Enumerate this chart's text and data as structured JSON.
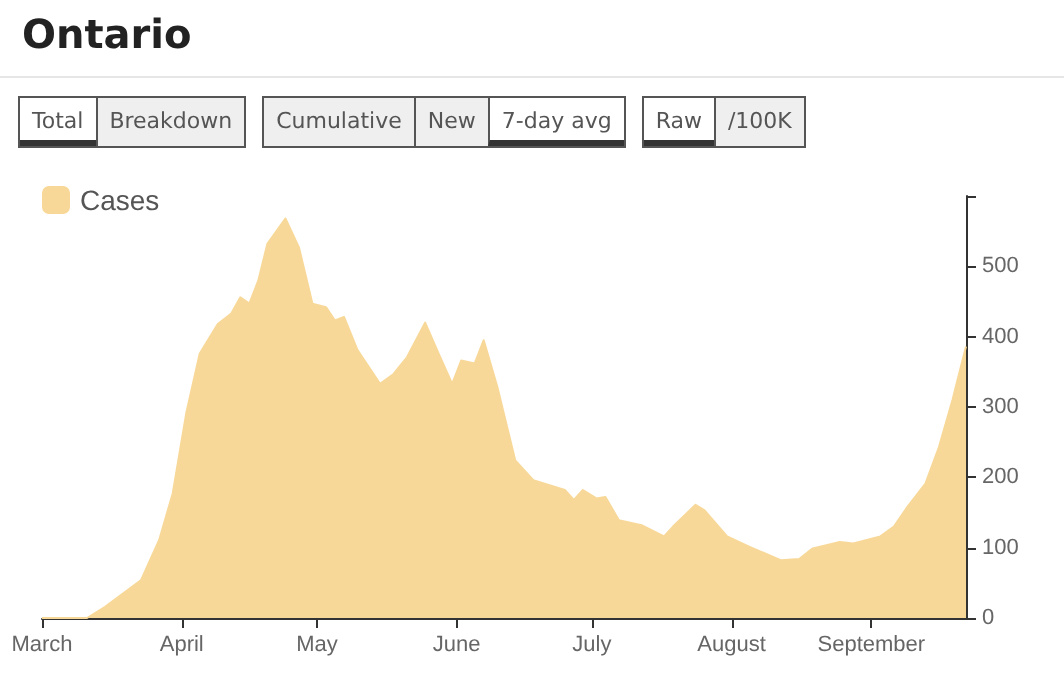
{
  "chart_data": {
    "type": "area",
    "title": "Ontario",
    "annotations": [
      "Total",
      "Breakdown",
      "Cumulative",
      "New",
      "7-day avg",
      "Raw",
      "/100K"
    ],
    "x": [
      "--03-01",
      "--03-11",
      "--03-15",
      "--03-23",
      "--03-27",
      "--03-30",
      "--04-02",
      "--04-05",
      "--04-09",
      "--04-12",
      "--04-14",
      "--04-16",
      "--04-18",
      "--04-20",
      "--04-24",
      "--04-27",
      "--04-30",
      "--05-03",
      "--05-05",
      "--05-07",
      "--05-10",
      "--05-15",
      "--05-18",
      "--05-21",
      "--05-25",
      "--05-28",
      "--05-31",
      "--06-02",
      "--06-05",
      "--06-07",
      "--06-10",
      "--06-14",
      "--06-18",
      "--06-25",
      "--06-27",
      "--06-29",
      "--07-02",
      "--07-04",
      "--07-07",
      "--07-12",
      "--07-17",
      "--07-19",
      "--07-24",
      "--07-26",
      "--07-31",
      "--08-05",
      "--08-12",
      "--08-16",
      "--08-19",
      "--08-25",
      "--08-28",
      "--09-03",
      "--09-06",
      "--09-09",
      "--09-13",
      "--09-16",
      "--09-19",
      "--09-22"
    ],
    "series": [
      {
        "name": "Cases",
        "color": "#f8d898",
        "values": [
          0,
          0,
          16,
          54,
          111,
          177,
          291,
          376,
          418,
          433,
          456,
          447,
          480,
          532,
          568,
          527,
          447,
          442,
          423,
          428,
          381,
          333,
          347,
          371,
          420,
          376,
          333,
          366,
          362,
          395,
          329,
          224,
          196,
          182,
          168,
          182,
          170,
          172,
          139,
          132,
          116,
          130,
          161,
          153,
          116,
          101,
          82,
          84,
          99,
          108,
          106,
          116,
          130,
          158,
          191,
          243,
          310,
          386
        ]
      }
    ],
    "xlim": [
      "--03-01",
      "--09-22"
    ],
    "xticks": [
      {
        "value": "--03-01",
        "label": "March"
      },
      {
        "value": "--04-01",
        "label": "April"
      },
      {
        "value": "--05-01",
        "label": "May"
      },
      {
        "value": "--06-01",
        "label": "June"
      },
      {
        "value": "--07-01",
        "label": "July"
      },
      {
        "value": "--08-01",
        "label": "August"
      },
      {
        "value": "--09-01",
        "label": "September"
      }
    ],
    "ylim": [
      0,
      600
    ],
    "yticks": [
      0,
      100,
      200,
      300,
      400,
      500,
      {
        "value": 600,
        "label": null
      }
    ],
    "legend": "top left",
    "grid": false
  }
}
